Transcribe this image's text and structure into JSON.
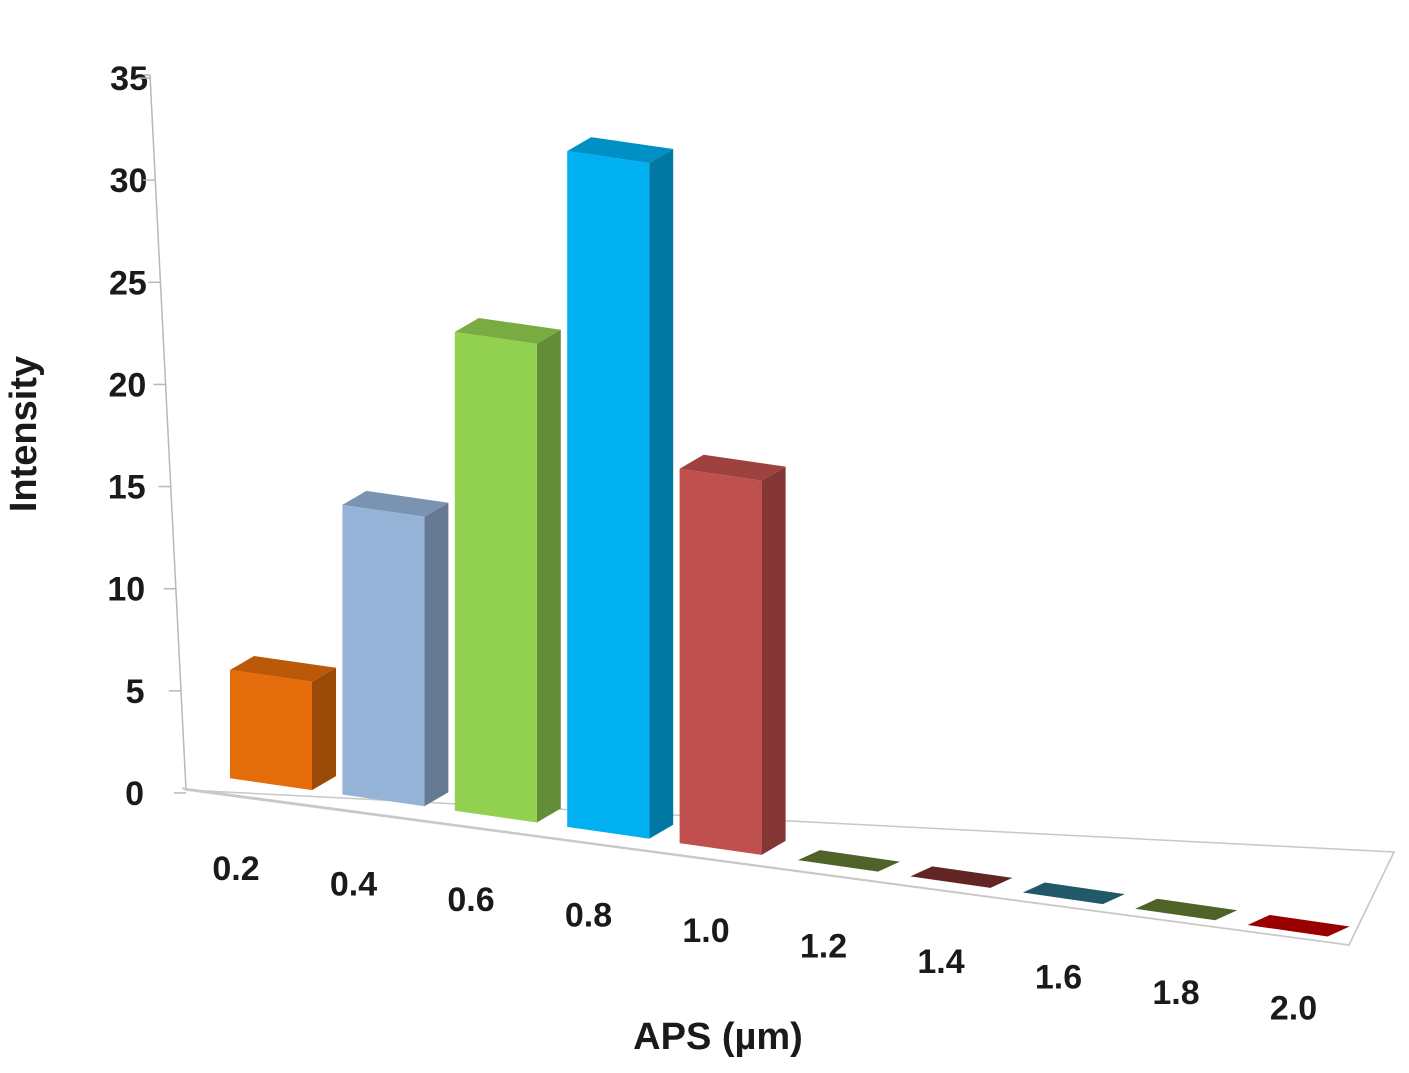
{
  "chart_data": {
    "type": "bar",
    "style": "3d-column",
    "categories": [
      "0.2",
      "0.4",
      "0.6",
      "0.8",
      "1.0",
      "1.2",
      "1.4",
      "1.6",
      "1.8",
      "2.0"
    ],
    "values": [
      5.5,
      14.7,
      24.3,
      34.3,
      19.0,
      0,
      0,
      0,
      0,
      0
    ],
    "colors": [
      "#E46C0A",
      "#95B3D7",
      "#92D050",
      "#00B0F0",
      "#C0504D",
      "#4F6228",
      "#632523",
      "#215968",
      "#4F6228",
      "#990000"
    ],
    "title": "",
    "xlabel": "APS (µm)",
    "ylabel": "Intensity",
    "ylim": [
      0,
      35
    ],
    "yticks": [
      "0",
      "5",
      "10",
      "15",
      "20",
      "25",
      "30",
      "35"
    ],
    "grid": false,
    "legend": "none"
  }
}
